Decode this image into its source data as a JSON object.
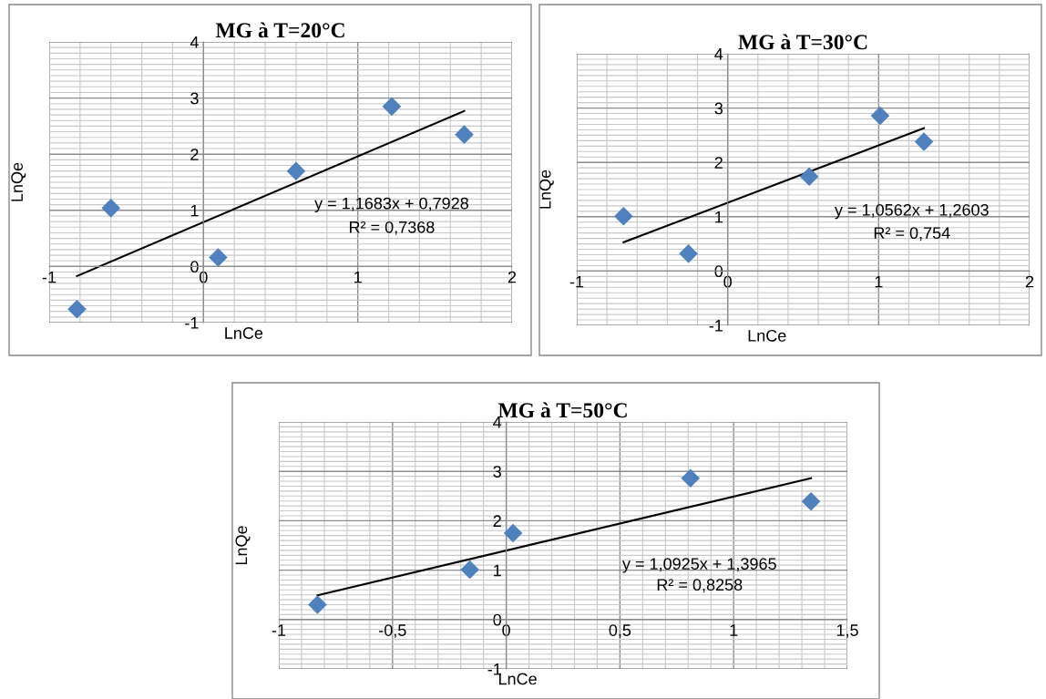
{
  "chart_data": [
    {
      "type": "scatter",
      "title": "MG à T=20°C",
      "xlabel": "LnCe",
      "ylabel": "LnQe",
      "xlim": [
        -1,
        2
      ],
      "ylim": [
        -1,
        4
      ],
      "xticks": [
        -1,
        0,
        1,
        2
      ],
      "yticks": [
        -1,
        0,
        1,
        2,
        3,
        4
      ],
      "grid": true,
      "legend": false,
      "annotations": [
        "y = 1,1683x + 0,7928",
        "R² = 0,7368"
      ],
      "series": [
        {
          "marker": "diamond",
          "color": "#4f81bd",
          "x": [
            -0.82,
            -0.6,
            0.095,
            0.6,
            1.22,
            1.69
          ],
          "values": [
            -0.76,
            1.04,
            0.16,
            1.7,
            2.85,
            2.35
          ]
        },
        {
          "type": "line",
          "color": "#000000",
          "x": [
            -0.82,
            1.69
          ],
          "values": [
            -0.17,
            2.77
          ]
        }
      ]
    },
    {
      "type": "scatter",
      "title": "MG à T=30°C",
      "xlabel": "LnCe",
      "ylabel": "LnQe",
      "xlim": [
        -1,
        2
      ],
      "ylim": [
        -1,
        4
      ],
      "xticks": [
        -1,
        0,
        1,
        2
      ],
      "yticks": [
        -1,
        0,
        1,
        2,
        3,
        4
      ],
      "grid": true,
      "legend": false,
      "annotations": [
        "y = 1,0562x + 1,2603",
        "R² = 0,754"
      ],
      "series": [
        {
          "marker": "diamond",
          "color": "#4f81bd",
          "x": [
            -0.69,
            -0.26,
            0.54,
            1.01,
            1.3
          ],
          "values": [
            1.01,
            0.32,
            1.74,
            2.86,
            2.38
          ]
        },
        {
          "type": "line",
          "color": "#000000",
          "x": [
            -0.69,
            1.3
          ],
          "values": [
            0.53,
            2.63
          ]
        }
      ]
    },
    {
      "type": "scatter",
      "title": "MG à T=50°C",
      "xlabel": "LnCe",
      "ylabel": "LnQe",
      "xlim": [
        -1,
        1.5
      ],
      "ylim": [
        -1,
        4
      ],
      "xticks": [
        -1,
        {
          "value": -0.5,
          "label": "-0,5"
        },
        0,
        {
          "value": 0.5,
          "label": "0,5"
        },
        1,
        {
          "value": 1.5,
          "label": "1,5"
        }
      ],
      "yticks": [
        -1,
        0,
        1,
        2,
        3,
        4
      ],
      "grid": true,
      "legend": false,
      "annotations": [
        "y = 1,0925x + 1,3965",
        "R² = 0,8258"
      ],
      "series": [
        {
          "marker": "diamond",
          "color": "#4f81bd",
          "x": [
            -0.83,
            -0.16,
            0.03,
            0.81,
            1.34
          ],
          "values": [
            0.3,
            1.01,
            1.75,
            2.86,
            2.39
          ]
        },
        {
          "type": "line",
          "color": "#000000",
          "x": [
            -0.83,
            1.34
          ],
          "values": [
            0.49,
            2.86
          ]
        }
      ]
    }
  ]
}
